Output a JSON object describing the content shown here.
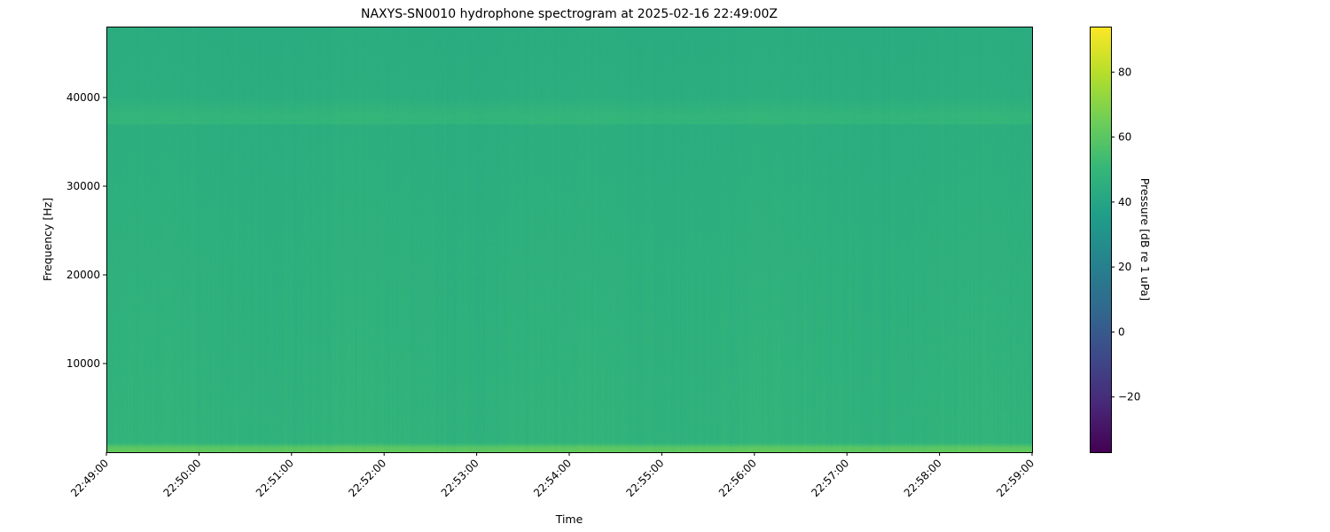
{
  "chart_data": {
    "type": "heatmap",
    "title": "NAXYS-SN0010 hydrophone spectrogram at 2025-02-16 22:49:00Z",
    "xlabel": "Time",
    "ylabel": "Frequency [Hz]",
    "colorbar_label": "Pressure [dB re 1 uPa]",
    "colormap": "viridis",
    "xlim": [
      "22:49:00",
      "22:59:00"
    ],
    "ylim": [
      0,
      48000
    ],
    "clim": [
      -37,
      94
    ],
    "x_ticks": [
      "22:49:00",
      "22:50:00",
      "22:51:00",
      "22:52:00",
      "22:53:00",
      "22:54:00",
      "22:55:00",
      "22:56:00",
      "22:57:00",
      "22:58:00",
      "22:59:00"
    ],
    "y_ticks": [
      10000,
      20000,
      30000,
      40000
    ],
    "colorbar_ticks": [
      -20,
      0,
      20,
      40,
      60,
      80
    ],
    "frequency_profile_hz": [
      0,
      500,
      1000,
      5000,
      10000,
      20000,
      30000,
      37500,
      40000,
      47500
    ],
    "frequency_profile_db": [
      62,
      60,
      50,
      49,
      48,
      46,
      45,
      50,
      45,
      44
    ],
    "grid": false
  }
}
